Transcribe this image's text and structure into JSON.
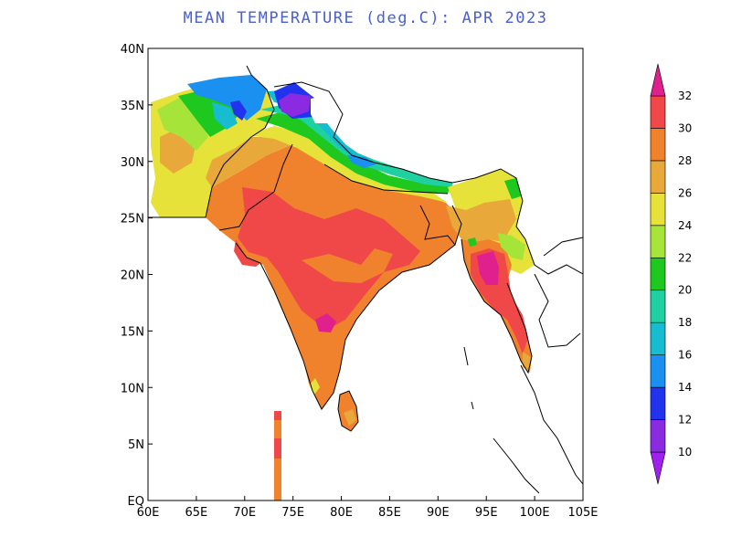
{
  "title": "MEAN TEMPERATURE (deg.C): APR 2023",
  "map": {
    "lon_ticks": [
      "60E",
      "65E",
      "70E",
      "75E",
      "80E",
      "85E",
      "90E",
      "95E",
      "100E",
      "105E"
    ],
    "lat_ticks": [
      "EQ",
      "5N",
      "10N",
      "15N",
      "20N",
      "25N",
      "30N",
      "35N",
      "40N"
    ],
    "lon_range": [
      60,
      105
    ],
    "lat_range": [
      0,
      40
    ]
  },
  "colorbar": {
    "levels": [
      "10",
      "12",
      "14",
      "16",
      "18",
      "20",
      "22",
      "24",
      "26",
      "28",
      "30",
      "32"
    ],
    "colors": [
      "#a020f0",
      "#8a2be2",
      "#2233ee",
      "#1a90f0",
      "#18bcd0",
      "#1fd0a0",
      "#1ec81e",
      "#a6e43a",
      "#e6e23a",
      "#e8a83a",
      "#f0822e",
      "#f04848",
      "#e0208c"
    ]
  },
  "colors": {
    "band_26_28": "#e8a83a",
    "band_28_30": "#f0822e",
    "band_30_32": "#f04848",
    "band_gt32": "#e0208c",
    "band_24_26": "#e6e23a",
    "band_22_24": "#a6e43a",
    "band_20_22": "#1ec81e",
    "band_18_20": "#1fd0a0",
    "band_16_18": "#18bcd0",
    "band_14_16": "#1a90f0",
    "band_12_14": "#2233ee",
    "band_10_12": "#8a2be2"
  }
}
